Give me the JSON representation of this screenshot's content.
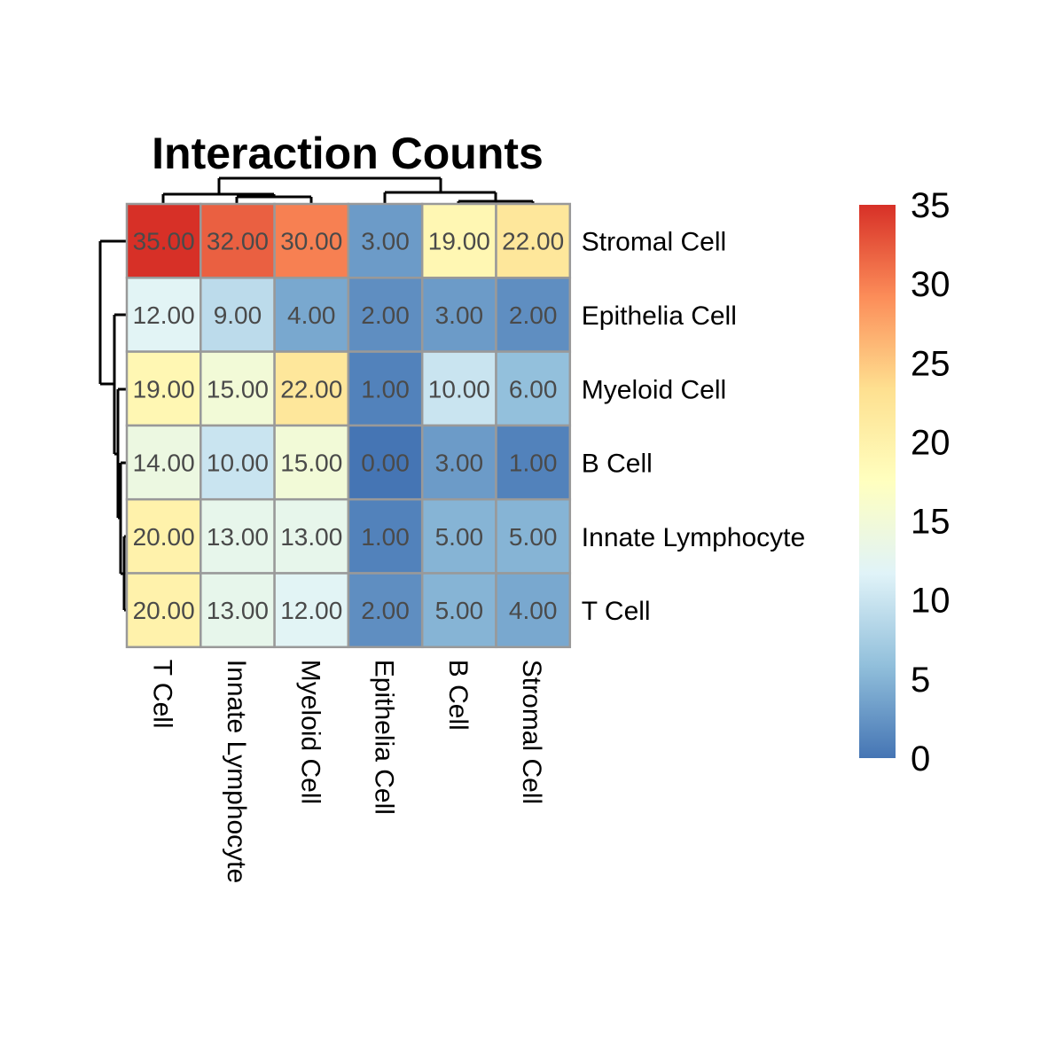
{
  "chart_data": {
    "type": "heatmap",
    "title": "Interaction Counts",
    "rows": [
      "Stromal Cell",
      "Epithelia Cell",
      "Myeloid Cell",
      "B Cell",
      "Innate Lymphocyte",
      "T Cell"
    ],
    "columns": [
      "T Cell",
      "Innate Lymphocyte",
      "Myeloid Cell",
      "Epithelia Cell",
      "B Cell",
      "Stromal Cell"
    ],
    "values": [
      [
        35,
        32,
        30,
        3,
        19,
        22
      ],
      [
        12,
        9,
        4,
        2,
        3,
        2
      ],
      [
        19,
        15,
        22,
        1,
        10,
        6
      ],
      [
        14,
        10,
        15,
        0,
        3,
        1
      ],
      [
        20,
        13,
        13,
        1,
        5,
        5
      ],
      [
        20,
        13,
        12,
        2,
        5,
        4
      ]
    ],
    "cell_labels": [
      [
        "35.00",
        "32.00",
        "30.00",
        "3.00",
        "19.00",
        "22.00"
      ],
      [
        "12.00",
        "9.00",
        "4.00",
        "2.00",
        "3.00",
        "2.00"
      ],
      [
        "19.00",
        "15.00",
        "22.00",
        "1.00",
        "10.00",
        "6.00"
      ],
      [
        "14.00",
        "10.00",
        "15.00",
        "0.00",
        "3.00",
        "1.00"
      ],
      [
        "20.00",
        "13.00",
        "13.00",
        "1.00",
        "5.00",
        "5.00"
      ],
      [
        "20.00",
        "13.00",
        "12.00",
        "2.00",
        "5.00",
        "4.00"
      ]
    ],
    "color_range": [
      0,
      35
    ],
    "colormap": [
      "#4575B4",
      "#91BFDB",
      "#E0F3F8",
      "#FFFFBF",
      "#FEE090",
      "#FC8D59",
      "#D73027"
    ],
    "legend": {
      "position": "right",
      "ticks": [
        "35",
        "30",
        "25",
        "20",
        "15",
        "10",
        "5",
        "0"
      ],
      "tick_values": [
        35,
        30,
        25,
        20,
        15,
        10,
        5,
        0
      ]
    },
    "row_dendrogram": true,
    "column_dendrogram": true
  }
}
